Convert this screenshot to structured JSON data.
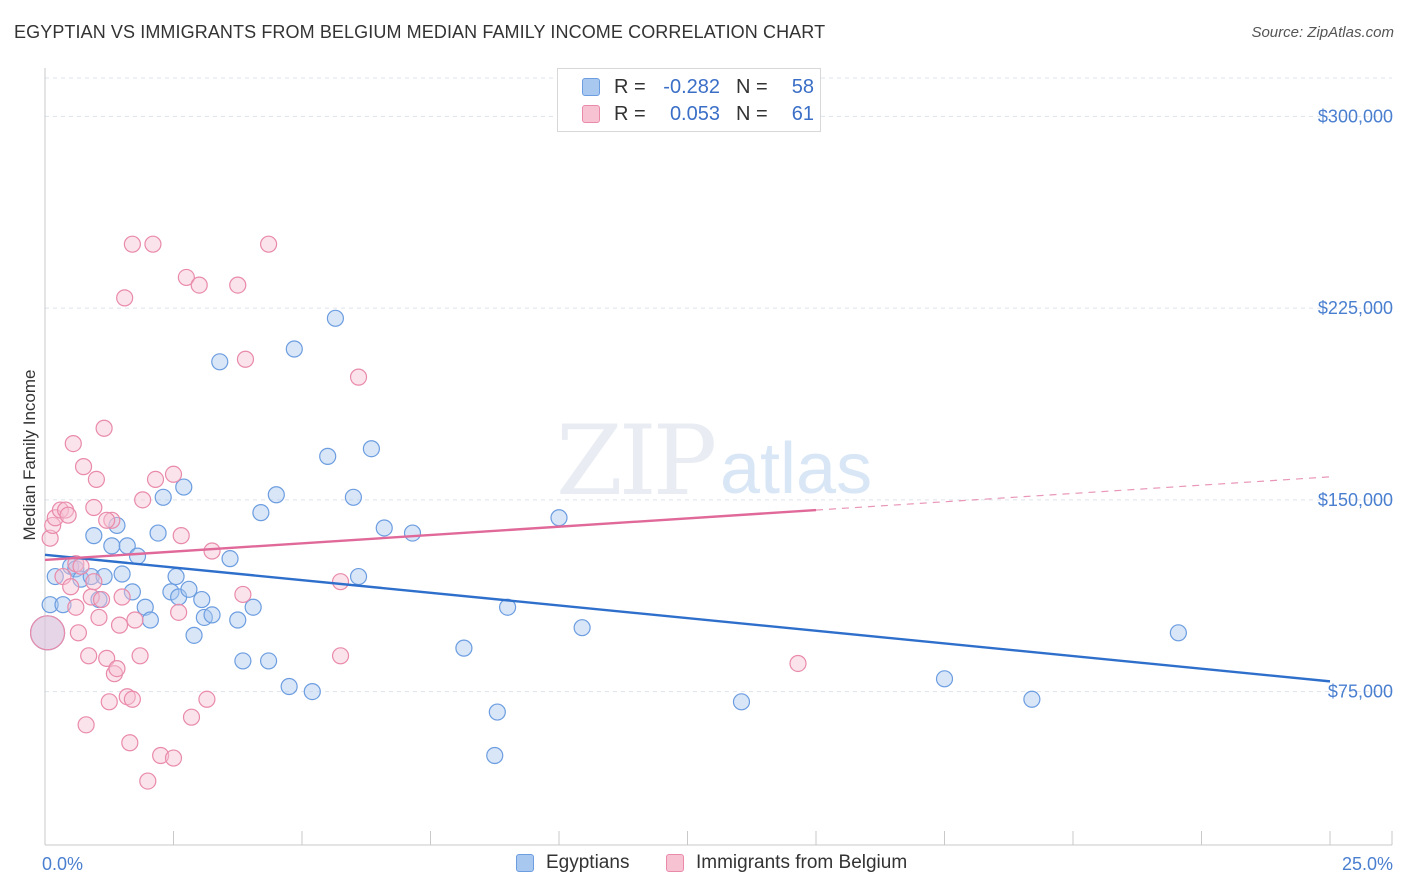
{
  "title": "EGYPTIAN VS IMMIGRANTS FROM BELGIUM MEDIAN FAMILY INCOME CORRELATION CHART",
  "source": "Source: ZipAtlas.com",
  "watermark": {
    "zip": "ZIP",
    "atlas": "atlas"
  },
  "legend": {
    "rows": [
      {
        "r_label": "R =",
        "r_value": "-0.282",
        "n_label": "N =",
        "n_value": "58",
        "color": "#a9c8f0",
        "border": "#6c9de0"
      },
      {
        "r_label": "R =",
        "r_value": "0.053",
        "n_label": "N =",
        "n_value": "61",
        "color": "#f7c2d2",
        "border": "#e98aaa"
      }
    ]
  },
  "bottom_legend": [
    {
      "label": "Egyptians",
      "color": "#a9c8f0",
      "border": "#6c9de0"
    },
    {
      "label": "Immigrants from Belgium",
      "color": "#f7c2d2",
      "border": "#e98aaa"
    }
  ],
  "chart_data": {
    "type": "scatter",
    "title": "EGYPTIAN VS IMMIGRANTS FROM BELGIUM MEDIAN FAMILY INCOME CORRELATION CHART",
    "xlabel": "",
    "ylabel": "Median Family Income",
    "xlim": [
      0,
      25
    ],
    "ylim": [
      15000,
      315000
    ],
    "x_tick_labels": [
      "0.0%",
      "25.0%"
    ],
    "y_ticks": [
      75000,
      150000,
      225000,
      300000
    ],
    "y_tick_labels": [
      "$75,000",
      "$150,000",
      "$225,000",
      "$300,000"
    ],
    "series": [
      {
        "name": "Egyptians",
        "color": "#6c9de0",
        "fill": "#a9c8f0",
        "trend": {
          "x": [
            0,
            25
          ],
          "y": [
            128500,
            79000
          ],
          "color": "#2f6fcc",
          "solid_to": 25
        },
        "points": [
          [
            0.05,
            98000,
            14
          ],
          [
            0.1,
            109000,
            10
          ],
          [
            0.2,
            120000,
            9
          ],
          [
            0.35,
            109000,
            9
          ],
          [
            0.5,
            124000,
            9
          ],
          [
            0.6,
            123000,
            9
          ],
          [
            0.7,
            119000,
            9
          ],
          [
            0.9,
            120000,
            9
          ],
          [
            0.95,
            136000,
            9
          ],
          [
            1.05,
            111000,
            9
          ],
          [
            1.15,
            120000,
            9
          ],
          [
            1.4,
            140000,
            9
          ],
          [
            1.3,
            132000,
            9
          ],
          [
            1.5,
            121000,
            9
          ],
          [
            1.6,
            132000,
            9
          ],
          [
            1.7,
            114000,
            9
          ],
          [
            1.8,
            128000,
            9
          ],
          [
            1.95,
            108000,
            9
          ],
          [
            2.05,
            103000,
            9
          ],
          [
            2.2,
            137000,
            9
          ],
          [
            2.3,
            151000,
            9
          ],
          [
            2.45,
            114000,
            9
          ],
          [
            2.55,
            120000,
            9
          ],
          [
            2.6,
            112000,
            9
          ],
          [
            2.7,
            155000,
            9
          ],
          [
            2.8,
            115000,
            9
          ],
          [
            2.9,
            97000,
            9
          ],
          [
            3.05,
            111000,
            9
          ],
          [
            3.1,
            104000,
            9
          ],
          [
            3.25,
            105000,
            9
          ],
          [
            3.4,
            204000,
            9
          ],
          [
            3.6,
            127000,
            9
          ],
          [
            3.75,
            103000,
            9
          ],
          [
            3.85,
            87000,
            9
          ],
          [
            4.05,
            108000,
            9
          ],
          [
            4.2,
            145000,
            9
          ],
          [
            4.35,
            87000,
            9
          ],
          [
            4.5,
            152000,
            9
          ],
          [
            4.75,
            77000,
            9
          ],
          [
            4.85,
            209000,
            9
          ],
          [
            5.2,
            75000,
            9
          ],
          [
            5.5,
            167000,
            9
          ],
          [
            5.65,
            221000,
            9
          ],
          [
            6.0,
            151000,
            9
          ],
          [
            6.1,
            120000,
            9
          ],
          [
            6.35,
            170000,
            9
          ],
          [
            6.6,
            139000,
            9
          ],
          [
            7.15,
            137000,
            9
          ],
          [
            8.15,
            92000,
            9
          ],
          [
            8.8,
            67000,
            9
          ],
          [
            8.75,
            50000,
            9
          ],
          [
            9.0,
            108000,
            9
          ],
          [
            10.0,
            143000,
            9
          ],
          [
            10.45,
            100000,
            9
          ],
          [
            13.55,
            71000,
            9
          ],
          [
            17.5,
            80000,
            9
          ],
          [
            19.2,
            72000,
            9
          ],
          [
            22.05,
            98000,
            9
          ]
        ]
      },
      {
        "name": "Immigrants from Belgium",
        "color": "#e98aaa",
        "fill": "#f7c2d2",
        "trend": {
          "x": [
            0,
            25
          ],
          "y": [
            126500,
            159000
          ],
          "color": "#e0699a",
          "solid_to": 15
        },
        "points": [
          [
            0.05,
            98000,
            14
          ],
          [
            0.1,
            135000,
            9
          ],
          [
            0.15,
            140000,
            9
          ],
          [
            0.2,
            143000,
            9
          ],
          [
            0.3,
            146000,
            9
          ],
          [
            0.35,
            120000,
            9
          ],
          [
            0.4,
            146000,
            9
          ],
          [
            0.45,
            144000,
            9
          ],
          [
            0.5,
            116000,
            9
          ],
          [
            0.55,
            172000,
            9
          ],
          [
            0.6,
            125000,
            9
          ],
          [
            0.65,
            98000,
            9
          ],
          [
            0.7,
            124000,
            9
          ],
          [
            0.75,
            163000,
            9
          ],
          [
            0.8,
            62000,
            9
          ],
          [
            0.85,
            89000,
            9
          ],
          [
            0.9,
            112000,
            9
          ],
          [
            0.95,
            147000,
            9
          ],
          [
            1.0,
            158000,
            9
          ],
          [
            1.05,
            104000,
            9
          ],
          [
            1.1,
            111000,
            9
          ],
          [
            1.15,
            178000,
            9
          ],
          [
            1.2,
            88000,
            9
          ],
          [
            1.25,
            71000,
            9
          ],
          [
            1.3,
            142000,
            9
          ],
          [
            1.35,
            82000,
            9
          ],
          [
            1.4,
            84000,
            9
          ],
          [
            1.45,
            101000,
            9
          ],
          [
            1.5,
            112000,
            9
          ],
          [
            1.55,
            229000,
            9
          ],
          [
            1.6,
            73000,
            9
          ],
          [
            1.65,
            55000,
            9
          ],
          [
            1.7,
            72000,
            9
          ],
          [
            1.7,
            250000,
            9
          ],
          [
            1.85,
            89000,
            9
          ],
          [
            1.9,
            150000,
            9
          ],
          [
            2.0,
            40000,
            9
          ],
          [
            2.1,
            250000,
            9
          ],
          [
            2.15,
            158000,
            9
          ],
          [
            2.25,
            50000,
            9
          ],
          [
            2.5,
            49000,
            9
          ],
          [
            2.6,
            106000,
            9
          ],
          [
            2.65,
            136000,
            9
          ],
          [
            2.75,
            237000,
            9
          ],
          [
            2.85,
            65000,
            9
          ],
          [
            3.0,
            234000,
            9
          ],
          [
            3.15,
            72000,
            9
          ],
          [
            3.25,
            130000,
            9
          ],
          [
            3.75,
            234000,
            9
          ],
          [
            3.85,
            113000,
            9
          ],
          [
            3.9,
            205000,
            9
          ],
          [
            4.35,
            250000,
            9
          ],
          [
            5.75,
            118000,
            9
          ],
          [
            5.75,
            89000,
            9
          ],
          [
            6.1,
            198000,
            9
          ],
          [
            14.65,
            86000,
            9
          ],
          [
            2.5,
            160000,
            9
          ],
          [
            1.2,
            142000,
            9
          ],
          [
            0.6,
            108000,
            9
          ],
          [
            0.95,
            118000,
            9
          ],
          [
            1.75,
            103000,
            9
          ]
        ]
      }
    ]
  }
}
